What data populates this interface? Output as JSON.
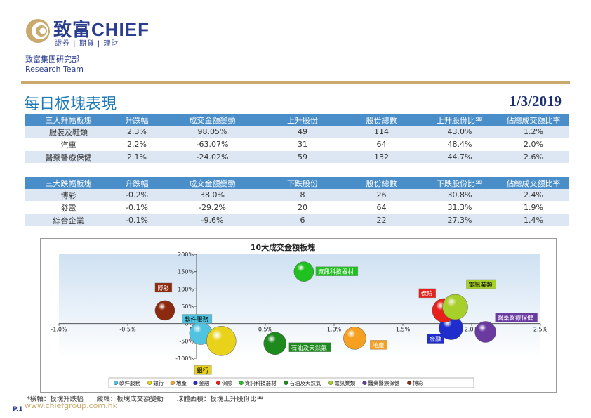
{
  "brand": {
    "name": "致富CHIEF",
    "tagline": "證券 | 期貨 | 理財",
    "dept_zh": "致富集團研究部",
    "dept_en": "Research Team"
  },
  "page": {
    "title": "每日板塊表現",
    "date": "1/3/2019",
    "website": "www.chiefgroup.com.hk",
    "page_number": "P.1"
  },
  "top_table": {
    "headers": [
      "三大升幅板塊",
      "升跌幅",
      "成交金額變動",
      "上升股份",
      "股份總數",
      "上升股份比率",
      "佔總成交額比率"
    ],
    "rows": [
      [
        "服裝及鞋類",
        "2.3%",
        "98.05%",
        "49",
        "114",
        "43.0%",
        "1.2%"
      ],
      [
        "汽車",
        "2.2%",
        "-63.07%",
        "31",
        "64",
        "48.4%",
        "2.0%"
      ],
      [
        "醫藥醫療保健",
        "2.1%",
        "-24.02%",
        "59",
        "132",
        "44.7%",
        "2.6%"
      ]
    ]
  },
  "bottom_table": {
    "headers": [
      "三大跌幅板塊",
      "升跌幅",
      "成交金額變動",
      "下跌股份",
      "股份總數",
      "下跌股份比率",
      "佔總成交額比率"
    ],
    "rows": [
      [
        "博彩",
        "-0.2%",
        "38.0%",
        "8",
        "26",
        "30.8%",
        "2.4%"
      ],
      [
        "發電",
        "-0.1%",
        "-29.2%",
        "20",
        "64",
        "31.3%",
        "1.9%"
      ],
      [
        "綜合企業",
        "-0.1%",
        "-9.6%",
        "6",
        "22",
        "27.3%",
        "1.4%"
      ]
    ]
  },
  "footnote": "*橫軸：板塊升跌幅　　縱軸：板塊成交額變動　　球體面積：板塊上升股份比率",
  "chart_data": {
    "type": "scatter",
    "title": "10大成交金額板塊",
    "xlim": [
      -1.0,
      2.5
    ],
    "ylim": [
      -100,
      200
    ],
    "x_ticks": [
      "-1.0%",
      "-0.5%",
      "0.0%",
      "0.5%",
      "1.0%",
      "1.5%",
      "2.0%",
      "2.5%"
    ],
    "y_ticks": [
      "200%",
      "150%",
      "100%",
      "50%",
      "0%",
      "-50%",
      "-100%"
    ],
    "grid": false,
    "legend": "bottom",
    "series": [
      {
        "name": "軟件服務",
        "x": 0.03,
        "y": -28,
        "size": 16,
        "color": "#4fc3e0"
      },
      {
        "name": "銀行",
        "x": 0.18,
        "y": -50,
        "size": 21,
        "color": "#e8d21a"
      },
      {
        "name": "地產",
        "x": 1.15,
        "y": -42,
        "size": 16,
        "color": "#f5a020"
      },
      {
        "name": "金融",
        "x": 1.85,
        "y": -12,
        "size": 17,
        "color": "#1f2dcc"
      },
      {
        "name": "保險",
        "x": 1.8,
        "y": 38,
        "size": 17,
        "color": "#e8201a"
      },
      {
        "name": "資訊科技器材",
        "x": 0.78,
        "y": 150,
        "size": 14,
        "color": "#20c020"
      },
      {
        "name": "石油及天然氣",
        "x": 0.57,
        "y": -57,
        "size": 16,
        "color": "#1e8a1e"
      },
      {
        "name": "電訊業類",
        "x": 1.88,
        "y": 48,
        "size": 18,
        "color": "#a8d02a"
      },
      {
        "name": "醫藥醫療保健",
        "x": 2.1,
        "y": -24,
        "size": 15,
        "color": "#6a3aa0"
      },
      {
        "name": "博彩",
        "x": -0.23,
        "y": 38,
        "size": 14,
        "color": "#8b2a0e"
      }
    ]
  }
}
